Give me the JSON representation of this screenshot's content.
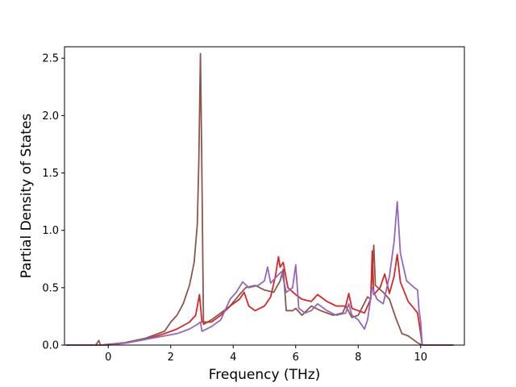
{
  "chart_data": {
    "type": "line",
    "title": "",
    "xlabel": "Frequency (THz)",
    "ylabel": "Partial Density of States",
    "xlim": [
      -1.4,
      11.4
    ],
    "ylim": [
      0.0,
      2.6
    ],
    "xticks": [
      0,
      2,
      4,
      6,
      8,
      10
    ],
    "yticks": [
      0.0,
      0.5,
      1.0,
      1.5,
      2.0,
      2.5
    ],
    "xtick_labels": [
      "0",
      "2",
      "4",
      "6",
      "8",
      "10"
    ],
    "ytick_labels": [
      "0.0",
      "0.5",
      "1.0",
      "1.5",
      "2.0",
      "2.5"
    ],
    "grid": false,
    "legend": "none",
    "series": [
      {
        "color": "#8c564b",
        "points": [
          [
            -1.35,
            0.0
          ],
          [
            -0.4,
            0.0
          ],
          [
            -0.3,
            0.04
          ],
          [
            -0.25,
            0.0
          ],
          [
            0.5,
            0.02
          ],
          [
            1.2,
            0.06
          ],
          [
            1.8,
            0.12
          ],
          [
            2.0,
            0.2
          ],
          [
            2.2,
            0.26
          ],
          [
            2.4,
            0.36
          ],
          [
            2.6,
            0.52
          ],
          [
            2.75,
            0.72
          ],
          [
            2.85,
            1.05
          ],
          [
            2.9,
            1.6
          ],
          [
            2.95,
            2.54
          ],
          [
            2.99,
            1.7
          ],
          [
            3.05,
            0.18
          ],
          [
            3.3,
            0.22
          ],
          [
            3.6,
            0.28
          ],
          [
            3.9,
            0.34
          ],
          [
            4.2,
            0.44
          ],
          [
            4.4,
            0.5
          ],
          [
            4.7,
            0.52
          ],
          [
            5.0,
            0.48
          ],
          [
            5.3,
            0.46
          ],
          [
            5.5,
            0.56
          ],
          [
            5.6,
            0.66
          ],
          [
            5.7,
            0.3
          ],
          [
            5.9,
            0.3
          ],
          [
            6.0,
            0.32
          ],
          [
            6.2,
            0.26
          ],
          [
            6.5,
            0.34
          ],
          [
            6.8,
            0.3
          ],
          [
            7.2,
            0.26
          ],
          [
            7.5,
            0.28
          ],
          [
            7.6,
            0.34
          ],
          [
            7.8,
            0.24
          ],
          [
            8.0,
            0.26
          ],
          [
            8.3,
            0.42
          ],
          [
            8.4,
            0.4
          ],
          [
            8.5,
            0.87
          ],
          [
            8.55,
            0.52
          ],
          [
            8.8,
            0.46
          ],
          [
            9.0,
            0.4
          ],
          [
            9.2,
            0.24
          ],
          [
            9.4,
            0.1
          ],
          [
            9.6,
            0.08
          ],
          [
            9.9,
            0.02
          ],
          [
            10.05,
            0.0
          ],
          [
            11.05,
            0.0
          ]
        ]
      },
      {
        "color": "#d62728",
        "points": [
          [
            -1.35,
            0.0
          ],
          [
            0.0,
            0.0
          ],
          [
            0.6,
            0.02
          ],
          [
            1.2,
            0.05
          ],
          [
            1.8,
            0.1
          ],
          [
            2.2,
            0.14
          ],
          [
            2.6,
            0.2
          ],
          [
            2.8,
            0.26
          ],
          [
            2.92,
            0.44
          ],
          [
            3.0,
            0.2
          ],
          [
            3.3,
            0.2
          ],
          [
            3.6,
            0.26
          ],
          [
            3.9,
            0.34
          ],
          [
            4.2,
            0.4
          ],
          [
            4.35,
            0.46
          ],
          [
            4.5,
            0.34
          ],
          [
            4.7,
            0.3
          ],
          [
            5.0,
            0.34
          ],
          [
            5.2,
            0.42
          ],
          [
            5.35,
            0.6
          ],
          [
            5.45,
            0.77
          ],
          [
            5.5,
            0.68
          ],
          [
            5.6,
            0.72
          ],
          [
            5.75,
            0.5
          ],
          [
            6.0,
            0.44
          ],
          [
            6.2,
            0.4
          ],
          [
            6.5,
            0.38
          ],
          [
            6.7,
            0.44
          ],
          [
            7.0,
            0.38
          ],
          [
            7.3,
            0.34
          ],
          [
            7.6,
            0.34
          ],
          [
            7.7,
            0.45
          ],
          [
            7.8,
            0.32
          ],
          [
            8.0,
            0.3
          ],
          [
            8.2,
            0.28
          ],
          [
            8.4,
            0.4
          ],
          [
            8.45,
            0.82
          ],
          [
            8.5,
            0.44
          ],
          [
            8.7,
            0.5
          ],
          [
            8.85,
            0.62
          ],
          [
            9.0,
            0.45
          ],
          [
            9.15,
            0.6
          ],
          [
            9.25,
            0.79
          ],
          [
            9.35,
            0.55
          ],
          [
            9.6,
            0.38
          ],
          [
            9.9,
            0.28
          ],
          [
            10.0,
            0.1
          ],
          [
            10.05,
            0.0
          ],
          [
            11.05,
            0.0
          ]
        ]
      },
      {
        "color": "#9467bd",
        "points": [
          [
            -1.35,
            0.0
          ],
          [
            0.0,
            0.0
          ],
          [
            0.6,
            0.02
          ],
          [
            1.2,
            0.05
          ],
          [
            1.8,
            0.08
          ],
          [
            2.2,
            0.1
          ],
          [
            2.6,
            0.14
          ],
          [
            2.85,
            0.18
          ],
          [
            2.95,
            0.2
          ],
          [
            3.0,
            0.12
          ],
          [
            3.3,
            0.16
          ],
          [
            3.6,
            0.22
          ],
          [
            3.9,
            0.4
          ],
          [
            4.1,
            0.46
          ],
          [
            4.3,
            0.55
          ],
          [
            4.5,
            0.5
          ],
          [
            4.8,
            0.52
          ],
          [
            5.0,
            0.56
          ],
          [
            5.1,
            0.68
          ],
          [
            5.2,
            0.54
          ],
          [
            5.4,
            0.6
          ],
          [
            5.55,
            0.64
          ],
          [
            5.7,
            0.46
          ],
          [
            5.9,
            0.5
          ],
          [
            6.0,
            0.7
          ],
          [
            6.1,
            0.32
          ],
          [
            6.3,
            0.28
          ],
          [
            6.5,
            0.3
          ],
          [
            6.7,
            0.36
          ],
          [
            7.0,
            0.3
          ],
          [
            7.3,
            0.26
          ],
          [
            7.6,
            0.28
          ],
          [
            7.7,
            0.36
          ],
          [
            7.8,
            0.26
          ],
          [
            8.0,
            0.22
          ],
          [
            8.2,
            0.14
          ],
          [
            8.3,
            0.22
          ],
          [
            8.45,
            0.5
          ],
          [
            8.6,
            0.4
          ],
          [
            8.8,
            0.36
          ],
          [
            9.0,
            0.6
          ],
          [
            9.15,
            0.9
          ],
          [
            9.25,
            1.25
          ],
          [
            9.35,
            0.8
          ],
          [
            9.55,
            0.56
          ],
          [
            9.8,
            0.5
          ],
          [
            9.9,
            0.48
          ],
          [
            9.95,
            0.3
          ],
          [
            10.0,
            0.2
          ],
          [
            10.05,
            0.0
          ],
          [
            11.05,
            0.0
          ]
        ]
      }
    ]
  }
}
